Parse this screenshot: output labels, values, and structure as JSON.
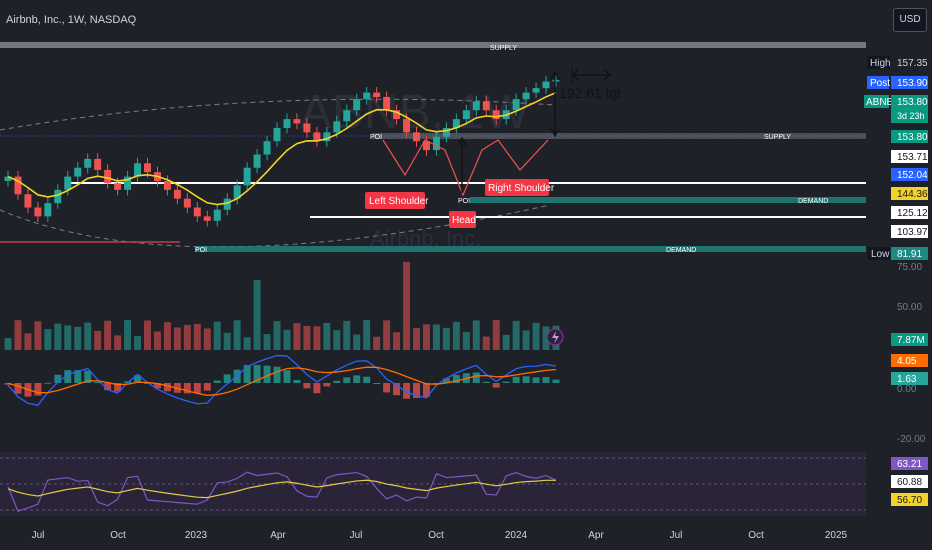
{
  "header": {
    "title": "Airbnb, Inc., 1W, NASDAQ",
    "currency": "USD"
  },
  "watermark": {
    "symbol": "ABNB, 1W",
    "name": "Airbnb, Inc."
  },
  "colors": {
    "bull": "#26a69a",
    "bear": "#ef5350",
    "ema": "#f2d227",
    "demand": "#1d8a83",
    "supply": "#8a8d96",
    "label_red": "#f23645",
    "macd": "#2962ff",
    "signal": "#ff6d00",
    "rsi": "#7e57c2",
    "rsi_ma": "#e6c84a"
  },
  "price_scale": {
    "high": {
      "tag": "High",
      "value": "157.35"
    },
    "post": {
      "tag": "Post",
      "value": "153.90"
    },
    "last": {
      "tag": "ABNB",
      "value": "153.80",
      "countdown": "3d 23h"
    },
    "levels": [
      "153.80",
      "153.71",
      "152.04",
      "144.36",
      "125.12",
      "103.97"
    ],
    "low": {
      "tag": "Low",
      "value": "81.91"
    },
    "tick_75": "75.00"
  },
  "volume": {
    "tick": "50.00",
    "value": "7.87M"
  },
  "macd": {
    "value1": "4.05",
    "value2": "1.63",
    "tick": "0.00",
    "tick_low": "-20.00"
  },
  "rsi": {
    "value": "63.21",
    "level1": "60.88",
    "level2": "56.70"
  },
  "annotations": {
    "supply_top": "SUPPLY",
    "supply_mid": "SUPPLY",
    "demand_upper": "DEMAND",
    "demand_lower": "DEMAND",
    "poi_top": "POI",
    "poi_bottom": "POI",
    "poi_mid": "POI",
    "target": "192.61 tgt",
    "left_shoulder": "Left Shoulder",
    "head": "Head",
    "right_shoulder": "Right Shoulder"
  },
  "chart_data": {
    "type": "candlestick",
    "xaxis_ticks": [
      "Jul",
      "Oct",
      "2023",
      "Apr",
      "Jul",
      "Oct",
      "2024",
      "Apr",
      "Jul",
      "Oct",
      "2025"
    ],
    "ylim": [
      70,
      165
    ],
    "close_approx": [
      110,
      102,
      96,
      92,
      98,
      104,
      110,
      114,
      118,
      113,
      107,
      104,
      110,
      116,
      112,
      108,
      104,
      100,
      96,
      92,
      90,
      95,
      100,
      106,
      114,
      120,
      126,
      132,
      136,
      134,
      130,
      126,
      130,
      135,
      140,
      145,
      148,
      146,
      140,
      136,
      130,
      126,
      122,
      128,
      132,
      136,
      140,
      144,
      140,
      136,
      140,
      145,
      148,
      150,
      153,
      153.8
    ],
    "levels": {
      "supply": 153.8,
      "upper_demand": 144.36,
      "lower_demand": 103.97,
      "white_lines": [
        144.36,
        125.12
      ]
    }
  }
}
